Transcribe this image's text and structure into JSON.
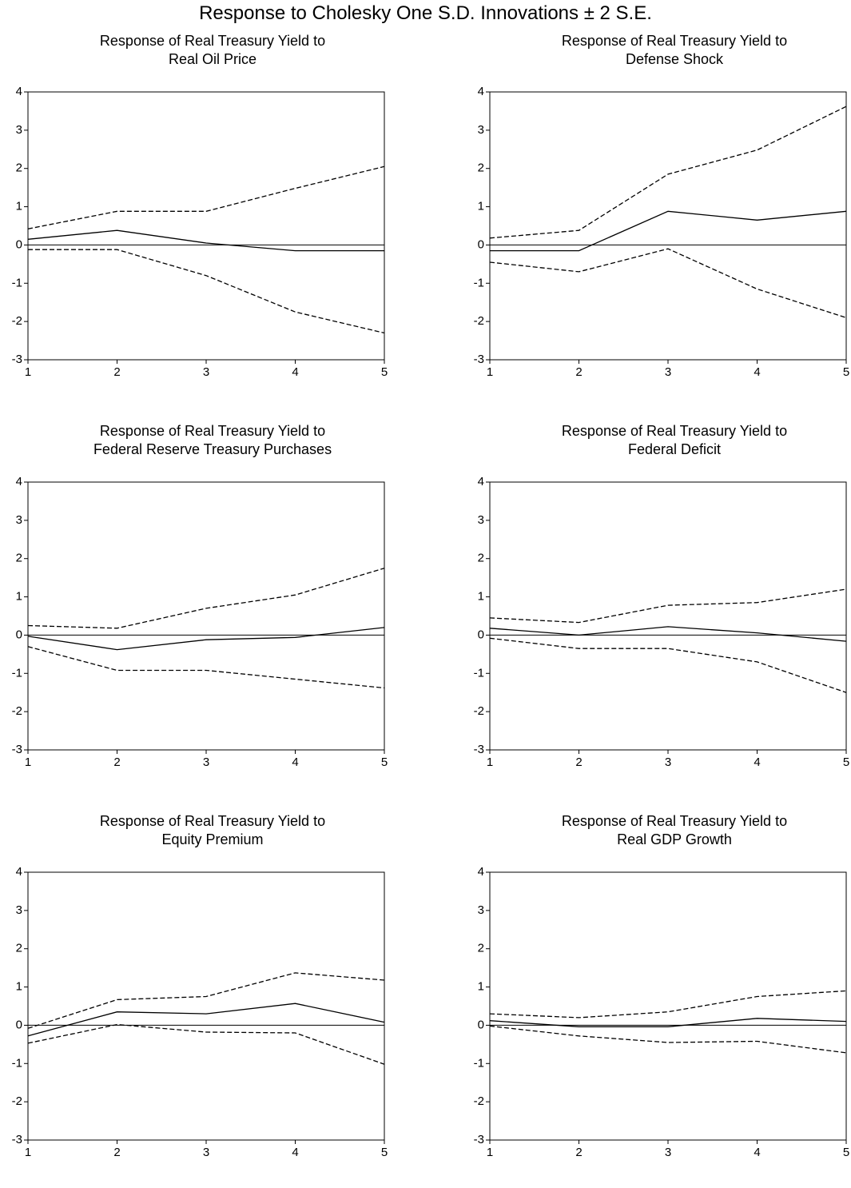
{
  "title": "Response to Cholesky One S.D. Innovations ± 2 S.E.",
  "colors": {
    "line": "#000000",
    "background": "#ffffff"
  },
  "chart_data": [
    {
      "type": "line",
      "title_line1": "Response of Real Treasury Yield to",
      "title_line2": "Real Oil Price",
      "x": [
        1,
        2,
        3,
        4,
        5
      ],
      "xticks": [
        "1",
        "2",
        "3",
        "4",
        "5"
      ],
      "yticks": [
        "4",
        "3",
        "2",
        "1",
        "0",
        "-1",
        "-2",
        "-3"
      ],
      "ylim": [
        -3,
        4
      ],
      "zero_line": true,
      "series": [
        {
          "style": "solid",
          "values": [
            0.15,
            0.38,
            0.05,
            -0.15,
            -0.15
          ]
        },
        {
          "style": "dashed",
          "values": [
            0.42,
            0.88,
            0.88,
            1.48,
            2.05
          ]
        },
        {
          "style": "dashed",
          "values": [
            -0.12,
            -0.12,
            -0.8,
            -1.75,
            -2.3
          ]
        }
      ]
    },
    {
      "type": "line",
      "title_line1": "Response of Real Treasury Yield to",
      "title_line2": "Defense Shock",
      "x": [
        1,
        2,
        3,
        4,
        5
      ],
      "xticks": [
        "1",
        "2",
        "3",
        "4",
        "5"
      ],
      "yticks": [
        "4",
        "3",
        "2",
        "1",
        "0",
        "-1",
        "-2",
        "-3"
      ],
      "ylim": [
        -3,
        4
      ],
      "zero_line": true,
      "series": [
        {
          "style": "solid",
          "values": [
            -0.15,
            -0.15,
            0.88,
            0.65,
            0.88
          ]
        },
        {
          "style": "dashed",
          "values": [
            0.18,
            0.38,
            1.85,
            2.48,
            3.62
          ]
        },
        {
          "style": "dashed",
          "values": [
            -0.45,
            -0.7,
            -0.1,
            -1.15,
            -1.9
          ]
        }
      ]
    },
    {
      "type": "line",
      "title_line1": "Response of Real Treasury Yield to",
      "title_line2": "Federal Reserve Treasury Purchases",
      "x": [
        1,
        2,
        3,
        4,
        5
      ],
      "xticks": [
        "1",
        "2",
        "3",
        "4",
        "5"
      ],
      "yticks": [
        "4",
        "3",
        "2",
        "1",
        "0",
        "-1",
        "-2",
        "-3"
      ],
      "ylim": [
        -3,
        4
      ],
      "zero_line": true,
      "series": [
        {
          "style": "solid",
          "values": [
            -0.03,
            -0.38,
            -0.12,
            -0.06,
            0.2
          ]
        },
        {
          "style": "dashed",
          "values": [
            0.25,
            0.18,
            0.7,
            1.05,
            1.75
          ]
        },
        {
          "style": "dashed",
          "values": [
            -0.3,
            -0.92,
            -0.92,
            -1.15,
            -1.38
          ]
        }
      ]
    },
    {
      "type": "line",
      "title_line1": "Response of Real Treasury Yield to",
      "title_line2": "Federal Deficit",
      "x": [
        1,
        2,
        3,
        4,
        5
      ],
      "xticks": [
        "1",
        "2",
        "3",
        "4",
        "5"
      ],
      "yticks": [
        "4",
        "3",
        "2",
        "1",
        "0",
        "-1",
        "-2",
        "-3"
      ],
      "ylim": [
        -3,
        4
      ],
      "zero_line": true,
      "series": [
        {
          "style": "solid",
          "values": [
            0.18,
            0.0,
            0.22,
            0.06,
            -0.16
          ]
        },
        {
          "style": "dashed",
          "values": [
            0.45,
            0.33,
            0.78,
            0.85,
            1.2
          ]
        },
        {
          "style": "dashed",
          "values": [
            -0.08,
            -0.35,
            -0.35,
            -0.7,
            -1.5
          ]
        }
      ]
    },
    {
      "type": "line",
      "title_line1": "Response of Real Treasury Yield to",
      "title_line2": "Equity Premium",
      "x": [
        1,
        2,
        3,
        4,
        5
      ],
      "xticks": [
        "1",
        "2",
        "3",
        "4",
        "5"
      ],
      "yticks": [
        "4",
        "3",
        "2",
        "1",
        "0",
        "-1",
        "-2",
        "-3"
      ],
      "ylim": [
        -3,
        4
      ],
      "zero_line": true,
      "series": [
        {
          "style": "solid",
          "values": [
            -0.28,
            0.35,
            0.3,
            0.57,
            0.08
          ]
        },
        {
          "style": "dashed",
          "values": [
            -0.08,
            0.67,
            0.75,
            1.37,
            1.18
          ]
        },
        {
          "style": "dashed",
          "values": [
            -0.47,
            0.02,
            -0.18,
            -0.2,
            -1.02
          ]
        }
      ]
    },
    {
      "type": "line",
      "title_line1": "Response of Real Treasury Yield to",
      "title_line2": "Real GDP Growth",
      "x": [
        1,
        2,
        3,
        4,
        5
      ],
      "xticks": [
        "1",
        "2",
        "3",
        "4",
        "5"
      ],
      "yticks": [
        "4",
        "3",
        "2",
        "1",
        "0",
        "-1",
        "-2",
        "-3"
      ],
      "ylim": [
        -3,
        4
      ],
      "zero_line": true,
      "series": [
        {
          "style": "solid",
          "values": [
            0.12,
            -0.04,
            -0.04,
            0.18,
            0.1
          ]
        },
        {
          "style": "dashed",
          "values": [
            0.3,
            0.2,
            0.35,
            0.75,
            0.9
          ]
        },
        {
          "style": "dashed",
          "values": [
            -0.02,
            -0.28,
            -0.45,
            -0.42,
            -0.72
          ]
        }
      ]
    }
  ]
}
